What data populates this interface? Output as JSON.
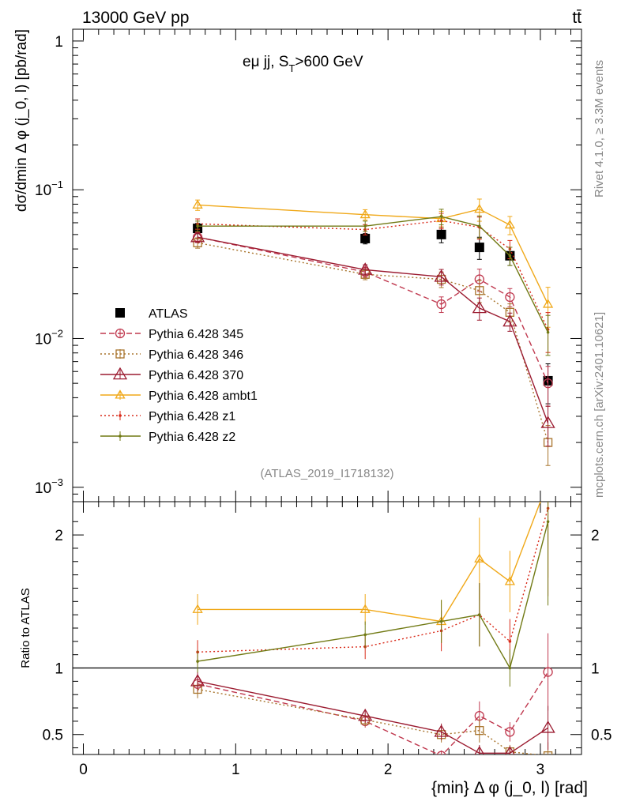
{
  "header": {
    "energy_label": "13000 GeV pp",
    "process_label": "tt̄",
    "rivet_label": "Rivet 4.1.0, ≥ 3.3M events",
    "mcplots_label": "mcplots.cern.ch [arXiv:2401.10621]",
    "analysis_label": "(ATLAS_2019_I1718132)"
  },
  "chart_data": [
    {
      "type": "scatter",
      "panel": "main",
      "title": "eμ jj, S_T>600 GeV",
      "title_main": "eμ jj, S",
      "title_sub": "T",
      "title_rest": ">600 GeV",
      "ylabel": "dσ/dmin Δ φ (j_0, l) [pb/rad]",
      "xlabel": "{min} Δ φ (j_0, l) [rad]",
      "yscale": "log",
      "ylim": [
        0.0008,
        1.2
      ],
      "xlim": [
        -0.07,
        3.27
      ],
      "x_ticks": [
        "0",
        "1",
        "2",
        "3"
      ],
      "y_ticks": [
        {
          "value": 1,
          "base": "1",
          "exp": ""
        },
        {
          "value": 0.1,
          "base": "10",
          "exp": "−1"
        },
        {
          "value": 0.01,
          "base": "10",
          "exp": "−2"
        },
        {
          "value": 0.001,
          "base": "10",
          "exp": "−3"
        }
      ],
      "x": [
        0.75,
        1.85,
        2.35,
        2.6,
        2.8,
        3.05
      ],
      "series": [
        {
          "name": "ATLAS",
          "color": "#000000",
          "marker": "square",
          "line": "none",
          "values": [
            0.055,
            0.047,
            0.05,
            0.041,
            0.036,
            0.0052
          ]
        },
        {
          "name": "Pythia 6.428 345",
          "color": "#c0394f",
          "marker": "circle-open",
          "line": "dashed",
          "values": [
            0.048,
            0.028,
            0.017,
            0.025,
            0.019,
            0.005
          ]
        },
        {
          "name": "Pythia 6.428 346",
          "color": "#a8742c",
          "marker": "square-open",
          "line": "dotted",
          "values": [
            0.044,
            0.027,
            0.025,
            0.021,
            0.015,
            0.002
          ]
        },
        {
          "name": "Pythia 6.428 370",
          "color": "#9b1b30",
          "marker": "triangle-open",
          "line": "solid",
          "values": [
            0.048,
            0.029,
            0.026,
            0.016,
            0.013,
            0.0027
          ]
        },
        {
          "name": "Pythia 6.428 ambt1",
          "color": "#f0a818",
          "marker": "triangle-open",
          "line": "solid",
          "values": [
            0.079,
            0.068,
            0.064,
            0.074,
            0.058,
            0.017
          ]
        },
        {
          "name": "Pythia 6.428 z1",
          "color": "#d92b1a",
          "marker": "dot",
          "line": "dotted",
          "values": [
            0.059,
            0.054,
            0.062,
            0.056,
            0.04,
            0.0115
          ]
        },
        {
          "name": "Pythia 6.428 z2",
          "color": "#717a14",
          "marker": "dot",
          "line": "solid",
          "values": [
            0.057,
            0.057,
            0.066,
            0.057,
            0.036,
            0.011
          ]
        }
      ]
    },
    {
      "type": "line",
      "panel": "ratio",
      "ylabel": "Ratio to ATLAS",
      "ylim": [
        0.35,
        2.25
      ],
      "y_ticks": [
        "0.5",
        "1",
        "2"
      ],
      "x": [
        0.75,
        1.85,
        2.35,
        2.6,
        2.8,
        3.05
      ],
      "series": [
        {
          "name": "Pythia 6.428 345",
          "values": [
            0.88,
            0.6,
            0.34,
            0.64,
            0.52,
            0.97
          ]
        },
        {
          "name": "Pythia 6.428 346",
          "values": [
            0.84,
            0.61,
            0.5,
            0.53,
            0.37,
            0.34
          ]
        },
        {
          "name": "Pythia 6.428 370",
          "values": [
            0.9,
            0.64,
            0.52,
            0.36,
            0.36,
            0.55
          ]
        },
        {
          "name": "Pythia 6.428 ambt1",
          "values": [
            1.44,
            1.44,
            1.35,
            1.82,
            1.65,
            2.4
          ]
        },
        {
          "name": "Pythia 6.428 z1",
          "values": [
            1.12,
            1.16,
            1.28,
            1.4,
            1.2,
            2.2
          ]
        },
        {
          "name": "Pythia 6.428 z2",
          "values": [
            1.05,
            1.25,
            1.35,
            1.4,
            1.0,
            2.1
          ]
        }
      ]
    }
  ]
}
